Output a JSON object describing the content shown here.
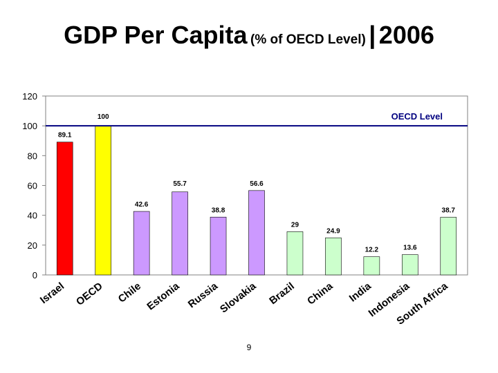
{
  "slide": {
    "title_main": "GDP Per Capita",
    "title_sub": "(% of OECD Level)",
    "title_sep": "|",
    "title_year": "2006",
    "page_number": "9"
  },
  "chart_data": {
    "type": "bar",
    "categories": [
      "Israel",
      "OECD",
      "Chile",
      "Estonia",
      "Russia",
      "Slovakia",
      "Brazil",
      "China",
      "India",
      "Indonesia",
      "South Africa"
    ],
    "values": [
      89.1,
      100,
      42.6,
      55.7,
      38.8,
      56.6,
      29,
      24.9,
      12.2,
      13.6,
      38.7
    ],
    "value_labels": [
      "89.1",
      "100",
      "42.6",
      "55.7",
      "38.8",
      "56.6",
      "29",
      "24.9",
      "12.2",
      "13.6",
      "38.7"
    ],
    "bar_colors": [
      "#ff0000",
      "#ffff00",
      "#cc99ff",
      "#cc99ff",
      "#cc99ff",
      "#cc99ff",
      "#ccffcc",
      "#ccffcc",
      "#ccffcc",
      "#ccffcc",
      "#ccffcc"
    ],
    "ylim": [
      0,
      120
    ],
    "yticks": [
      0,
      20,
      40,
      60,
      80,
      100,
      120
    ],
    "reference_line": {
      "value": 100,
      "label": "OECD Level",
      "color": "#000080"
    },
    "grid": false,
    "title": "",
    "xlabel": "",
    "ylabel": ""
  }
}
